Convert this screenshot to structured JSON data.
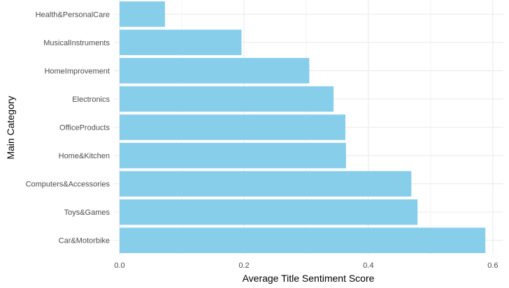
{
  "chart_data": {
    "type": "bar",
    "orientation": "horizontal",
    "categories": [
      "Health&PersonalCare",
      "MusicalInstruments",
      "HomeImprovement",
      "Electronics",
      "OfficeProducts",
      "Home&Kitchen",
      "Computers&Accessories",
      "Toys&Games",
      "Car&Motorbike"
    ],
    "values": [
      0.073,
      0.196,
      0.305,
      0.344,
      0.363,
      0.364,
      0.469,
      0.479,
      0.588
    ],
    "xlabel": "Average Title Sentiment Score",
    "ylabel": "Main Category",
    "xlim": [
      -0.009,
      0.617
    ],
    "xticks": [
      0.0,
      0.2,
      0.4,
      0.6
    ],
    "xtick_labels": [
      "0.0",
      "0.2",
      "0.4",
      "0.6"
    ],
    "grid": true,
    "bar_color": "#87CEEB",
    "grid_color": "#EBEBEB"
  }
}
